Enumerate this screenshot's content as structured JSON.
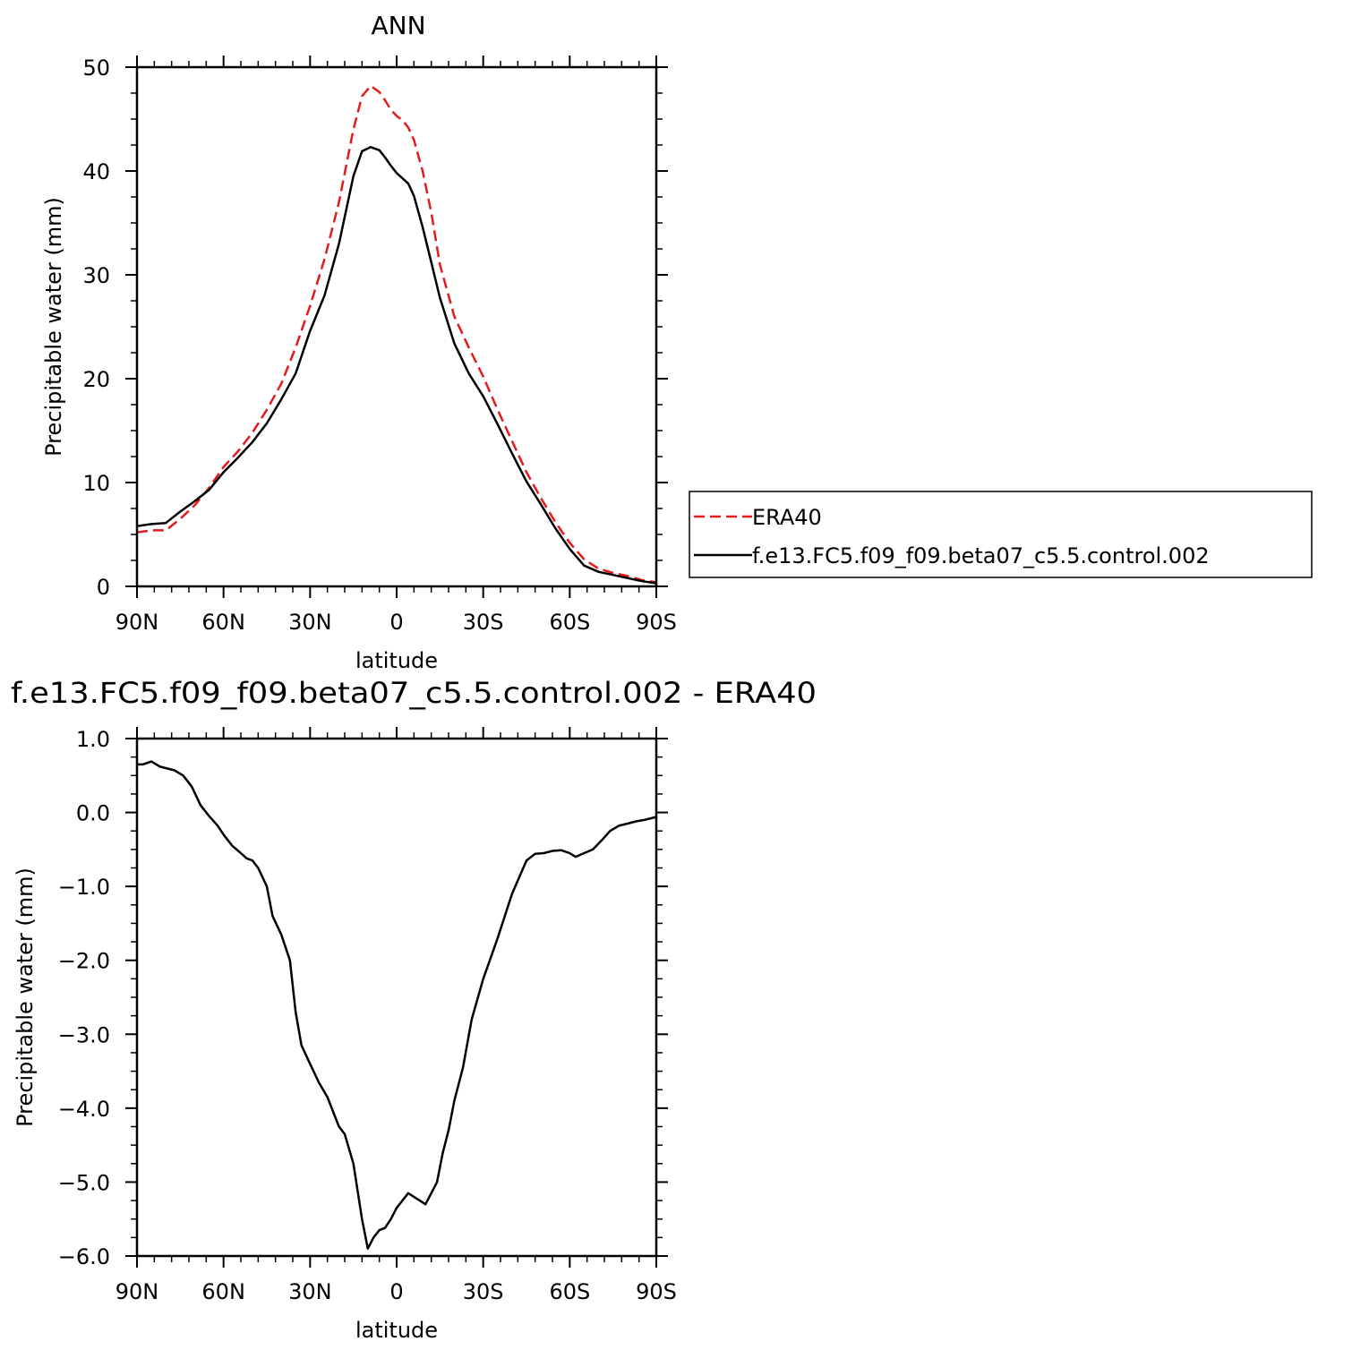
{
  "chart_data": [
    {
      "type": "line",
      "title": "ANN",
      "xlabel": "latitude",
      "ylabel": "Precipitable water (mm)",
      "xlim": [
        90,
        -90
      ],
      "ylim": [
        0,
        50
      ],
      "x_ticks": [
        90,
        60,
        30,
        0,
        -30,
        -60,
        -90
      ],
      "x_tick_labels": [
        "90N",
        "60N",
        "30N",
        "0",
        "30S",
        "60S",
        "90S"
      ],
      "y_ticks": [
        0,
        10,
        20,
        30,
        40,
        50
      ],
      "y_tick_labels": [
        "0",
        "10",
        "20",
        "30",
        "40",
        "50"
      ],
      "legend_position": "right",
      "series": [
        {
          "name": "ERA40",
          "color": "#e41a1c",
          "dash": "dashed",
          "x": [
            90,
            85,
            80,
            75,
            70,
            65,
            60,
            55,
            50,
            45,
            40,
            35,
            30,
            25,
            20,
            15,
            12,
            9,
            6,
            4,
            2,
            0,
            -2,
            -4,
            -6,
            -9,
            -12,
            -15,
            -20,
            -25,
            -30,
            -35,
            -40,
            -45,
            -50,
            -55,
            -60,
            -65,
            -70,
            -75,
            -80,
            -85,
            -90
          ],
          "y": [
            5.2,
            5.4,
            5.4,
            6.5,
            7.8,
            9.5,
            11.5,
            13.0,
            14.8,
            17.0,
            19.5,
            23.0,
            27.0,
            31.5,
            37.0,
            44.0,
            47.2,
            48.2,
            47.6,
            46.8,
            45.9,
            45.3,
            44.9,
            44.2,
            43.0,
            40.0,
            36.0,
            31.0,
            26.0,
            23.0,
            20.2,
            17.0,
            14.0,
            11.0,
            8.5,
            6.2,
            4.2,
            2.6,
            1.7,
            1.3,
            1.0,
            0.6,
            0.4
          ]
        },
        {
          "name": "f.e13.FC5.f09_f09.beta07_c5.5.control.002",
          "color": "#000000",
          "dash": "solid",
          "x": [
            90,
            85,
            80,
            75,
            70,
            65,
            60,
            55,
            50,
            45,
            40,
            35,
            30,
            25,
            20,
            15,
            12,
            9,
            6,
            4,
            2,
            0,
            -2,
            -4,
            -6,
            -9,
            -12,
            -15,
            -20,
            -25,
            -30,
            -35,
            -40,
            -45,
            -50,
            -55,
            -60,
            -65,
            -70,
            -75,
            -80,
            -85,
            -90
          ],
          "y": [
            5.8,
            6.0,
            6.1,
            7.2,
            8.2,
            9.3,
            11.0,
            12.4,
            13.9,
            15.7,
            18.0,
            20.5,
            24.6,
            28.0,
            33.0,
            39.5,
            41.9,
            42.3,
            42.0,
            41.3,
            40.5,
            39.8,
            39.3,
            38.8,
            37.6,
            34.6,
            31.2,
            27.8,
            23.4,
            20.5,
            18.3,
            15.6,
            12.8,
            10.1,
            7.9,
            5.6,
            3.6,
            2.0,
            1.4,
            1.1,
            0.8,
            0.5,
            0.3
          ]
        }
      ]
    },
    {
      "type": "line",
      "title": "f.e13.FC5.f09_f09.beta07_c5.5.control.002 - ERA40",
      "xlabel": "latitude",
      "ylabel": "Precipitable water (mm)",
      "xlim": [
        90,
        -90
      ],
      "ylim": [
        -6.0,
        1.0
      ],
      "x_ticks": [
        90,
        60,
        30,
        0,
        -30,
        -60,
        -90
      ],
      "x_tick_labels": [
        "90N",
        "60N",
        "30N",
        "0",
        "30S",
        "60S",
        "90S"
      ],
      "y_ticks": [
        1.0,
        0.0,
        -1.0,
        -2.0,
        -3.0,
        -4.0,
        -5.0,
        -6.0
      ],
      "y_tick_labels": [
        "1.0",
        "0.0",
        "−1.0",
        "−2.0",
        "−3.0",
        "−4.0",
        "−5.0",
        "−6.0"
      ],
      "series": [
        {
          "color": "#000000",
          "dash": "solid",
          "x": [
            90,
            88,
            85,
            82,
            80,
            77,
            74,
            71,
            68,
            65,
            62,
            60,
            57,
            54,
            52,
            50,
            48,
            45,
            43,
            40,
            37,
            35,
            33,
            30,
            27,
            24,
            22,
            20,
            18,
            15,
            12,
            10,
            8,
            6,
            4,
            2,
            0,
            -2,
            -4,
            -6,
            -8,
            -10,
            -12,
            -14,
            -16,
            -18,
            -20,
            -23,
            -26,
            -30,
            -35,
            -40,
            -45,
            -48,
            -51,
            -54,
            -57,
            -60,
            -62,
            -65,
            -68,
            -71,
            -74,
            -77,
            -80,
            -83,
            -86,
            -90
          ],
          "y": [
            0.65,
            0.65,
            0.69,
            0.62,
            0.6,
            0.57,
            0.5,
            0.35,
            0.1,
            -0.05,
            -0.18,
            -0.3,
            -0.45,
            -0.55,
            -0.62,
            -0.65,
            -0.75,
            -1.0,
            -1.4,
            -1.65,
            -2.0,
            -2.7,
            -3.15,
            -3.4,
            -3.65,
            -3.85,
            -4.05,
            -4.25,
            -4.35,
            -4.75,
            -5.5,
            -5.9,
            -5.75,
            -5.65,
            -5.62,
            -5.5,
            -5.35,
            -5.25,
            -5.15,
            -5.2,
            -5.25,
            -5.3,
            -5.15,
            -5.0,
            -4.6,
            -4.3,
            -3.9,
            -3.45,
            -2.8,
            -2.25,
            -1.7,
            -1.1,
            -0.65,
            -0.56,
            -0.55,
            -0.52,
            -0.51,
            -0.55,
            -0.6,
            -0.55,
            -0.5,
            -0.38,
            -0.25,
            -0.18,
            -0.15,
            -0.12,
            -0.1,
            -0.06
          ]
        }
      ]
    }
  ]
}
